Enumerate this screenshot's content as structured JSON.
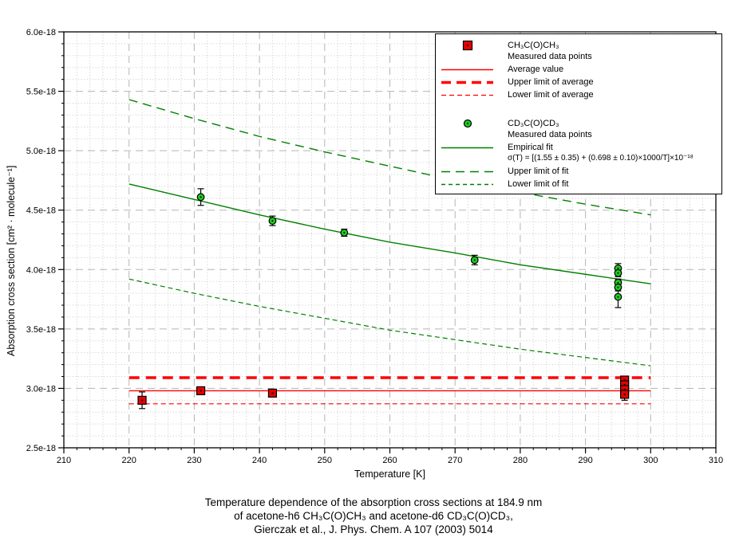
{
  "colors": {
    "red": "#ff0000",
    "red_marker": "#e60000",
    "green": "#008000",
    "green_marker": "#1ecc1e",
    "grid_major": "#b5b5b5",
    "grid_minor": "#c9c9c9",
    "axis": "#000000",
    "error_bar": "#000000"
  },
  "legend": {
    "h6_name": "CH₃C(O)CH₃",
    "h6_sub": "Measured data points",
    "average": "Average value",
    "upper_avg": "Upper limit of average",
    "lower_avg": "Lower limit of average",
    "d6_name": "CD₃C(O)CD₃",
    "d6_sub": "Measured data points",
    "fit": "Empirical fit",
    "fit_equation": "σ(T) = [(1.55 ± 0.35) + (0.698 ± 0.10)×1000/T]×10⁻¹⁸",
    "upper_fit": "Upper limit of fit",
    "lower_fit": "Lower limit of fit"
  },
  "caption": {
    "line1": "Temperature dependence of the absorption cross sections at 184.9 nm",
    "line2": "of acetone-h6 CH₃C(O)CH₃ and acetone-d6 CD₃C(O)CD₃,",
    "line3": "Gierczak et al., J. Phys. Chem. A 107 (2003) 5014"
  },
  "chart_data": {
    "type": "scatter",
    "title": "Temperature dependence of the absorption cross sections at 184.9 nm of acetone-h6 CH3C(O)CH3 and acetone-d6 CD3C(O)CD3, Gierczak et al., J. Phys. Chem. A 107 (2003) 5014",
    "xlabel": "Temperature [K]",
    "ylabel": "Absorption cross section [cm² · molecule⁻¹]",
    "xlim": [
      210,
      310
    ],
    "ylim_e18": [
      2.5,
      6.0
    ],
    "value_unit": "1e-18 cm2/molecule",
    "grid": "major-dashed and minor-dotted",
    "legend_position": "upper right",
    "x_major_ticks": [
      210,
      220,
      230,
      240,
      250,
      260,
      270,
      280,
      290,
      300,
      310
    ],
    "x_minor_step": 2,
    "y_major_ticks": [
      {
        "v": 2.5,
        "label": "2.5e-18"
      },
      {
        "v": 3.0,
        "label": "3.0e-18"
      },
      {
        "v": 3.5,
        "label": "3.5e-18"
      },
      {
        "v": 4.0,
        "label": "4.0e-18"
      },
      {
        "v": 4.5,
        "label": "4.5e-18"
      },
      {
        "v": 5.0,
        "label": "5.0e-18"
      },
      {
        "v": 5.5,
        "label": "5.5e-18"
      },
      {
        "v": 6.0,
        "label": "6.0e-18"
      }
    ],
    "y_minor_step": 0.1,
    "series": [
      {
        "name": "Upper limit of fit",
        "kind": "curve",
        "color_key": "green",
        "line_style": "long-dash",
        "points": [
          [
            220,
            5.43
          ],
          [
            230,
            5.27
          ],
          [
            240,
            5.12
          ],
          [
            250,
            4.99
          ],
          [
            260,
            4.87
          ],
          [
            270,
            4.75
          ],
          [
            280,
            4.65
          ],
          [
            290,
            4.55
          ],
          [
            300,
            4.46
          ]
        ]
      },
      {
        "name": "Lower limit of fit",
        "kind": "curve",
        "color_key": "green",
        "line_style": "short-dash",
        "points": [
          [
            220,
            3.92
          ],
          [
            230,
            3.8
          ],
          [
            240,
            3.69
          ],
          [
            250,
            3.59
          ],
          [
            260,
            3.49
          ],
          [
            270,
            3.41
          ],
          [
            280,
            3.33
          ],
          [
            290,
            3.26
          ],
          [
            300,
            3.19
          ]
        ]
      },
      {
        "name": "Empirical fit",
        "kind": "curve",
        "color_key": "green",
        "line_style": "solid",
        "points": [
          [
            220,
            4.72
          ],
          [
            230,
            4.59
          ],
          [
            240,
            4.46
          ],
          [
            250,
            4.34
          ],
          [
            260,
            4.23
          ],
          [
            270,
            4.14
          ],
          [
            280,
            4.04
          ],
          [
            290,
            3.96
          ],
          [
            300,
            3.88
          ]
        ]
      },
      {
        "name": "Upper limit of average",
        "kind": "hline",
        "color_key": "red",
        "line_style": "long-dash-thick",
        "y": 3.09,
        "x_range": [
          220,
          300
        ]
      },
      {
        "name": "Lower limit of average",
        "kind": "hline",
        "color_key": "red",
        "line_style": "short-dash",
        "y": 2.87,
        "x_range": [
          220,
          300
        ]
      },
      {
        "name": "Average value",
        "kind": "hline",
        "color_key": "red",
        "line_style": "solid",
        "y": 2.98,
        "x_range": [
          220,
          300
        ]
      },
      {
        "name": "CD3C(O)CD3 measured data points",
        "kind": "scatter",
        "marker": "circle",
        "color_key": "green_marker",
        "points": [
          [
            231,
            4.61,
            0.07
          ],
          [
            242,
            4.41,
            0.04
          ],
          [
            253,
            4.31,
            0.03
          ],
          [
            273,
            4.08,
            0.04
          ],
          [
            295,
            4.01,
            0.04
          ],
          [
            295,
            3.97,
            0.03
          ],
          [
            295,
            3.89,
            0.03
          ],
          [
            295,
            3.85,
            0.03
          ],
          [
            295,
            3.77,
            0.09
          ]
        ]
      },
      {
        "name": "CH3C(O)CH3 measured data points",
        "kind": "scatter",
        "marker": "square",
        "color_key": "red_marker",
        "points": [
          [
            222,
            2.9,
            0.07
          ],
          [
            231,
            2.98,
            0.02
          ],
          [
            242,
            2.96,
            0.02
          ],
          [
            296,
            3.07,
            0.03
          ],
          [
            296,
            3.03,
            0.03
          ],
          [
            296,
            2.99,
            0.03
          ],
          [
            296,
            2.95,
            0.05
          ]
        ]
      }
    ]
  }
}
